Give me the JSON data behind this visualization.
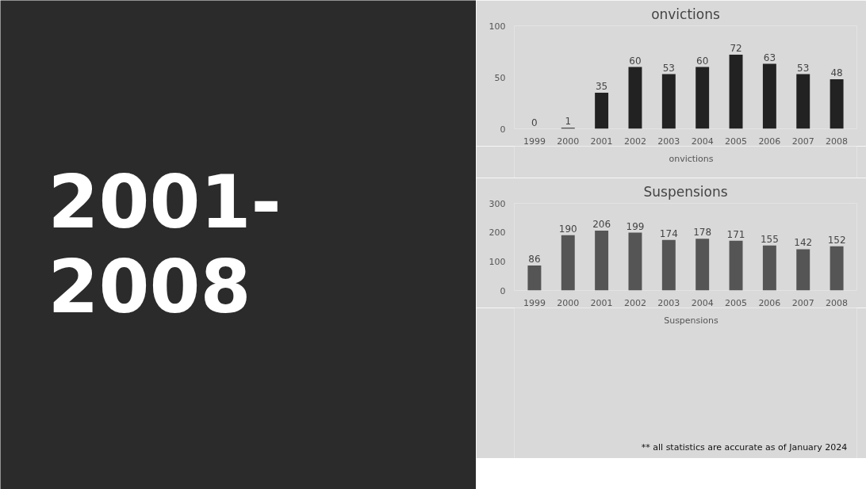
{
  "chart_data": [
    {
      "type": "other",
      "title": "2001-\n2008"
    },
    {
      "type": "bar",
      "title": "onvictions",
      "categories": [
        "1999",
        "2000",
        "2001",
        "2002",
        "2003",
        "2004",
        "2005",
        "2006",
        "2007",
        "2008"
      ],
      "series": [
        {
          "name": "onvictions",
          "color": "#222222",
          "values": [
            0,
            1,
            35,
            60,
            53,
            60,
            72,
            63,
            53,
            48
          ]
        }
      ],
      "ylim": [
        0,
        100
      ],
      "yticks": [
        0,
        50,
        100
      ],
      "grid": false,
      "data_labels": true,
      "legend": "bottom"
    },
    {
      "type": "bar",
      "title": "Suspensions",
      "categories": [
        "1999",
        "2000",
        "2001",
        "2002",
        "2003",
        "2004",
        "2005",
        "2006",
        "2007",
        "2008"
      ],
      "series": [
        {
          "name": "Suspensions",
          "color": "#555555",
          "values": [
            86,
            190,
            206,
            199,
            174,
            178,
            171,
            155,
            142,
            152
          ]
        }
      ],
      "ylim": [
        0,
        300
      ],
      "yticks": [
        0,
        100,
        200,
        300
      ],
      "grid": false,
      "data_labels": true,
      "legend": "bottom",
      "annotations": [
        "** all statistics are accurate as of January  2024"
      ]
    }
  ]
}
